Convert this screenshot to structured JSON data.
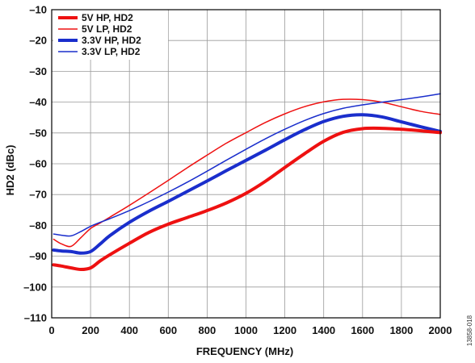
{
  "chart_data": {
    "type": "line",
    "title": "",
    "xlabel": "FREQUENCY (MHz)",
    "ylabel": "HD2 (dBc)",
    "xlim": [
      0,
      2000
    ],
    "ylim": [
      -110,
      -10
    ],
    "xticks": [
      0,
      200,
      400,
      600,
      800,
      1000,
      1200,
      1400,
      1600,
      1800,
      2000
    ],
    "yticks": [
      -10,
      -20,
      -30,
      -40,
      -50,
      -60,
      -70,
      -80,
      -90,
      -100,
      -110
    ],
    "xtick_labels": [
      "0",
      "200",
      "400",
      "600",
      "800",
      "1000",
      "1200",
      "1400",
      "1600",
      "1800",
      "2000"
    ],
    "ytick_labels": [
      "–10",
      "–20",
      "–30",
      "–40",
      "–50",
      "–60",
      "–70",
      "–80",
      "–90",
      "–100",
      "–110"
    ],
    "grid": true,
    "legend_position": "top-left",
    "figure_id": "13858-018",
    "series": [
      {
        "name": "5V HP, HD2",
        "color": "#ee1111",
        "weight": "thick",
        "x": [
          10,
          50,
          100,
          150,
          200,
          250,
          300,
          400,
          500,
          600,
          700,
          800,
          900,
          1000,
          1100,
          1200,
          1300,
          1400,
          1500,
          1600,
          1700,
          1800,
          1900,
          2000
        ],
        "y": [
          -92.8,
          -93.2,
          -93.8,
          -94.3,
          -93.8,
          -91.5,
          -89.5,
          -85.8,
          -82.3,
          -79.6,
          -77.4,
          -75.2,
          -72.7,
          -69.6,
          -65.7,
          -61.2,
          -56.8,
          -52.7,
          -49.8,
          -48.6,
          -48.5,
          -48.8,
          -49.3,
          -49.9
        ]
      },
      {
        "name": "5V LP, HD2",
        "color": "#ee1111",
        "weight": "thin",
        "x": [
          10,
          50,
          100,
          150,
          200,
          250,
          300,
          400,
          500,
          600,
          700,
          800,
          900,
          1000,
          1100,
          1200,
          1300,
          1400,
          1500,
          1600,
          1700,
          1800,
          1900,
          2000
        ],
        "y": [
          -84.5,
          -86.0,
          -86.8,
          -84.0,
          -81.0,
          -79.2,
          -77.3,
          -73.5,
          -69.5,
          -65.4,
          -61.2,
          -57.2,
          -53.3,
          -49.9,
          -46.6,
          -43.8,
          -41.5,
          -39.9,
          -39.1,
          -39.2,
          -40.0,
          -41.5,
          -43.0,
          -44.0
        ]
      },
      {
        "name": "3.3V HP, HD2",
        "color": "#1a2ecc",
        "weight": "thick",
        "x": [
          10,
          50,
          100,
          150,
          200,
          250,
          300,
          400,
          500,
          600,
          700,
          800,
          900,
          1000,
          1100,
          1200,
          1300,
          1400,
          1500,
          1600,
          1700,
          1800,
          1900,
          2000
        ],
        "y": [
          -88.0,
          -88.3,
          -88.5,
          -89.0,
          -88.5,
          -86.0,
          -83.3,
          -79.0,
          -75.4,
          -72.2,
          -68.9,
          -65.6,
          -62.2,
          -58.9,
          -55.6,
          -52.2,
          -49.0,
          -46.3,
          -44.6,
          -44.1,
          -44.8,
          -46.4,
          -48.0,
          -49.5
        ]
      },
      {
        "name": "3.3V LP, HD2",
        "color": "#1a2ecc",
        "weight": "thin",
        "x": [
          10,
          50,
          100,
          150,
          200,
          250,
          300,
          400,
          500,
          600,
          700,
          800,
          900,
          1000,
          1100,
          1200,
          1300,
          1400,
          1500,
          1600,
          1700,
          1800,
          1900,
          2000
        ],
        "y": [
          -82.8,
          -83.2,
          -83.4,
          -82.0,
          -80.3,
          -79.0,
          -77.8,
          -75.2,
          -72.3,
          -69.2,
          -65.9,
          -62.4,
          -58.8,
          -55.3,
          -51.9,
          -48.8,
          -46.0,
          -43.7,
          -42.0,
          -40.9,
          -40.0,
          -39.2,
          -38.3,
          -37.3
        ]
      }
    ]
  }
}
